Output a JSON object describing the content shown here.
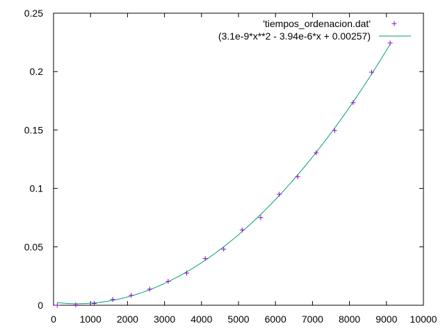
{
  "chart_data": {
    "type": "scatter",
    "title": "",
    "xlabel": "",
    "ylabel": "",
    "xlim": [
      0,
      10000
    ],
    "ylim": [
      0,
      0.25
    ],
    "x_ticks": [
      0,
      1000,
      2000,
      3000,
      4000,
      5000,
      6000,
      7000,
      8000,
      9000,
      10000
    ],
    "x_tick_labels": [
      "0",
      "1000",
      "2000",
      "3000",
      "4000",
      "5000",
      "6000",
      "7000",
      "8000",
      "9000",
      "10000"
    ],
    "y_ticks": [
      0,
      0.05,
      0.1,
      0.15,
      0.2,
      0.25
    ],
    "y_tick_labels": [
      "0",
      "0.05",
      "0.1",
      "0.15",
      "0.2",
      "0.25"
    ],
    "grid": false,
    "legend_position": "top-right",
    "series": [
      {
        "name": "'tiempos_ordenacion.dat'",
        "kind": "points",
        "marker": "+",
        "color": "#9400d3",
        "x": [
          100,
          600,
          1100,
          1600,
          2100,
          2600,
          3100,
          3600,
          4100,
          4600,
          5100,
          5600,
          6100,
          6600,
          7100,
          7600,
          8100,
          8600,
          9100
        ],
        "y": [
          0.0,
          0.0003,
          0.0015,
          0.005,
          0.0085,
          0.0138,
          0.0205,
          0.0275,
          0.04,
          0.048,
          0.0645,
          0.075,
          0.095,
          0.11,
          0.1305,
          0.1495,
          0.1735,
          0.1995,
          0.2245
        ]
      },
      {
        "name": "(3.1e-9*x**2 - 3.94e-6*x + 0.00257)",
        "kind": "line",
        "color": "#009e73",
        "coefficients": {
          "a": 3.1e-09,
          "b": -3.94e-06,
          "c": 0.00257
        },
        "x_range": [
          100,
          9100
        ]
      }
    ]
  }
}
